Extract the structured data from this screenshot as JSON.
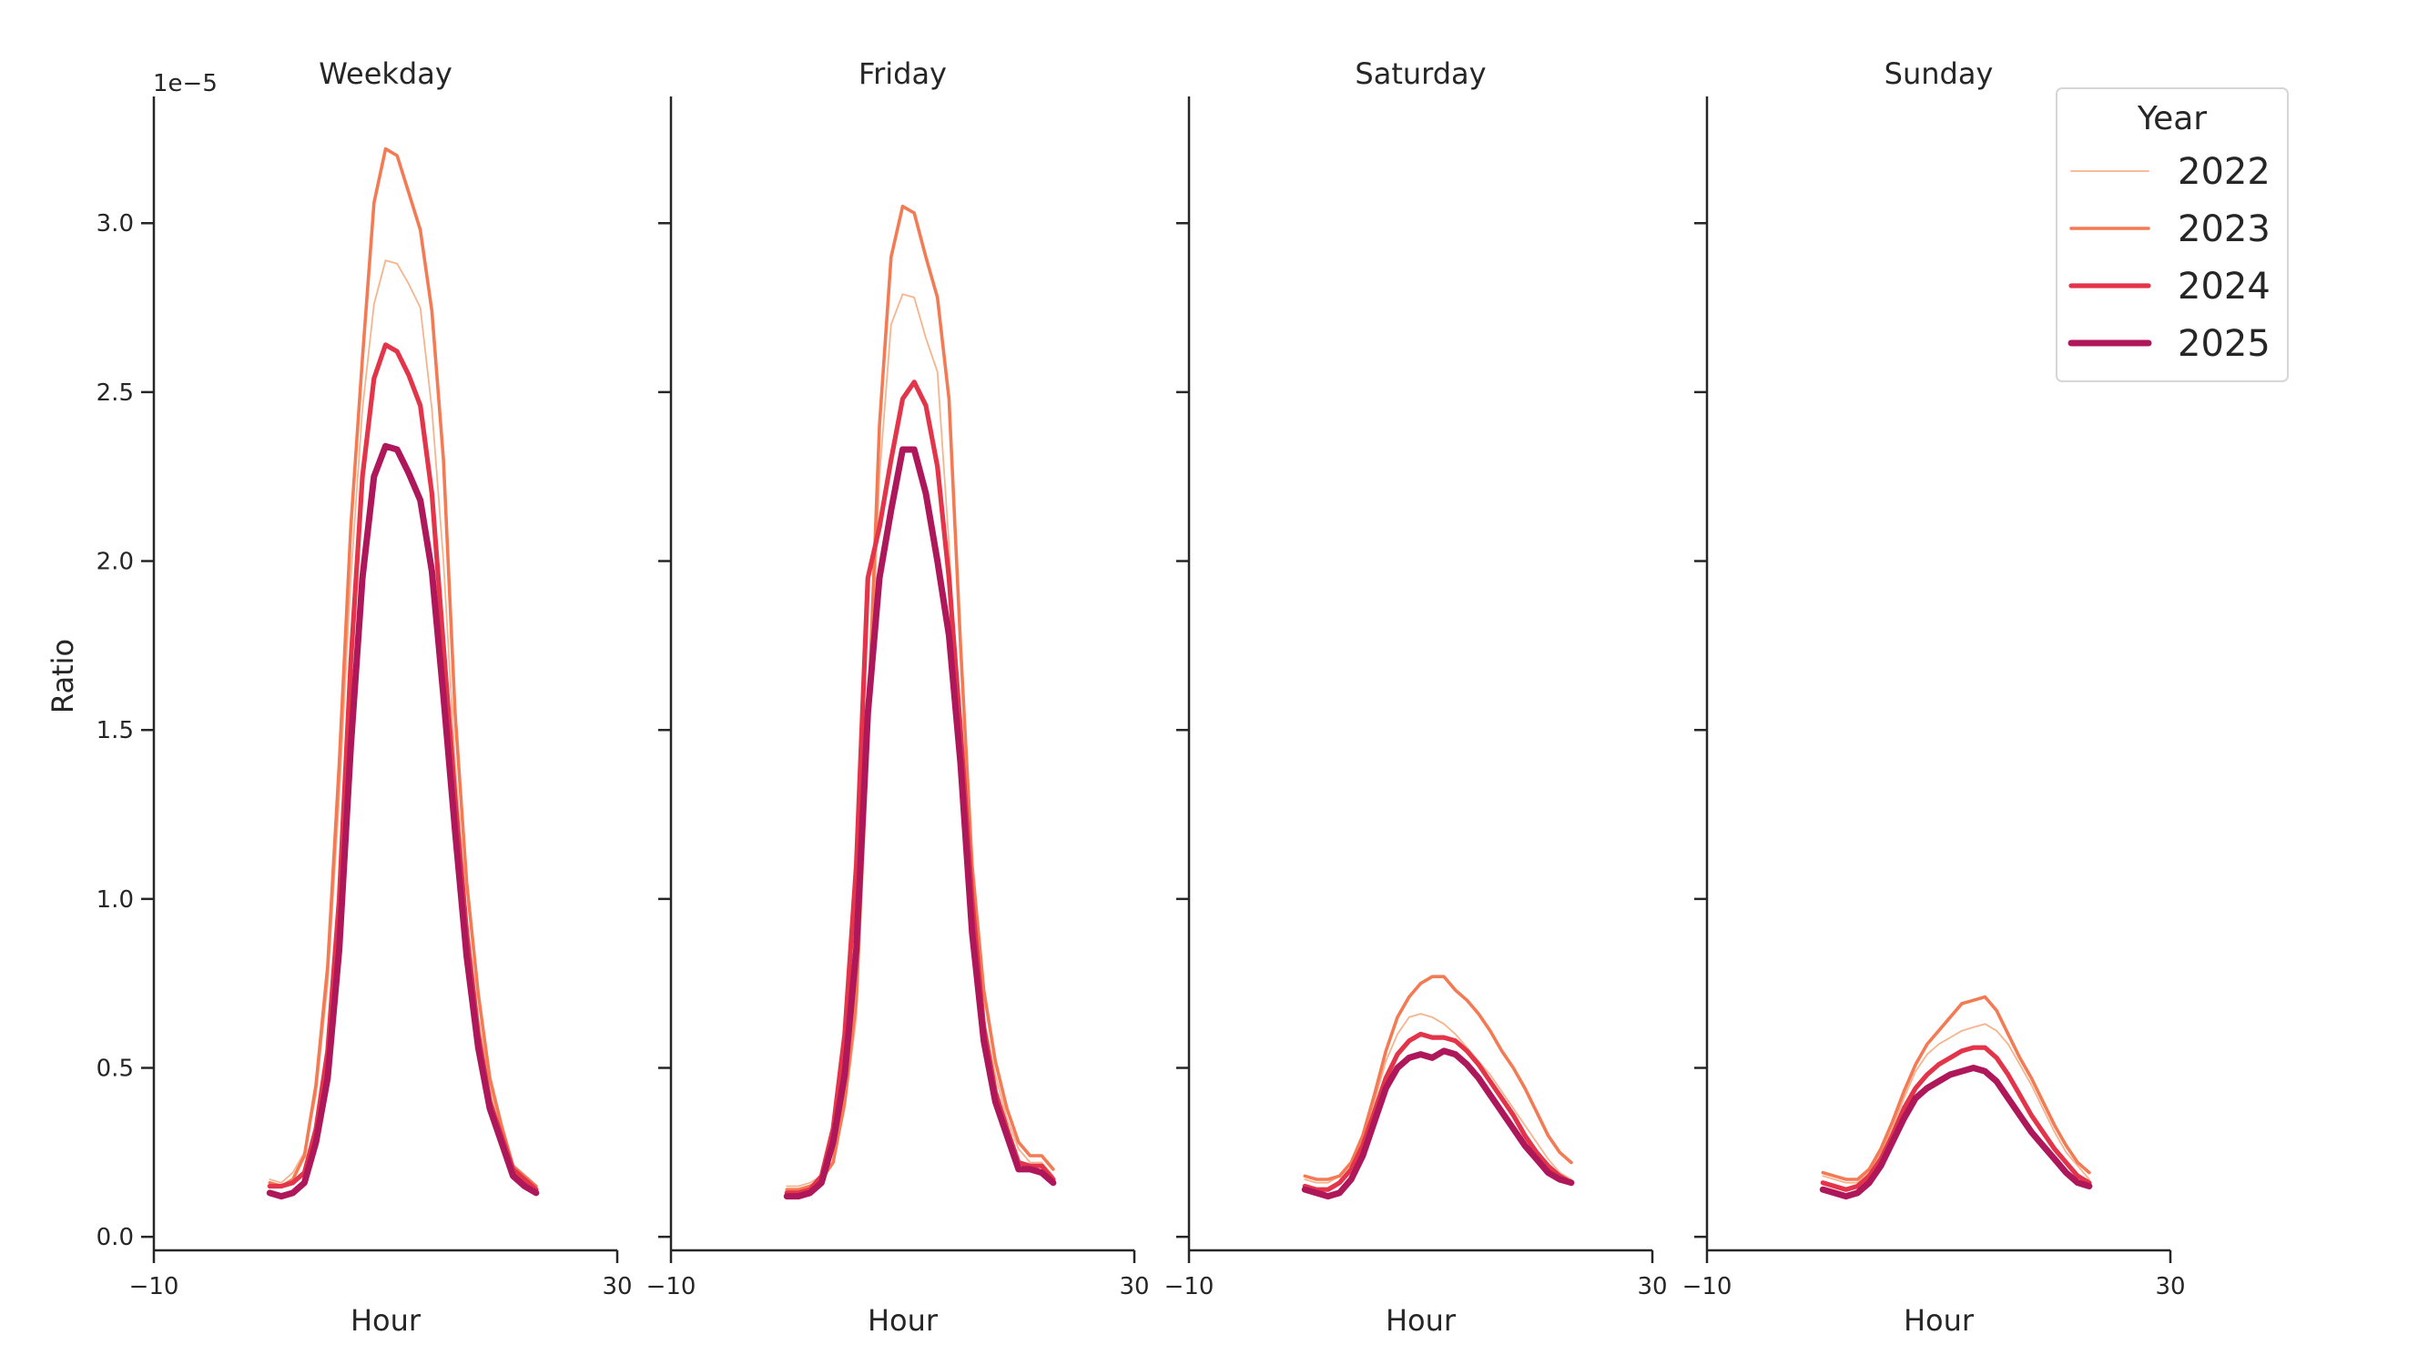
{
  "chart_data": {
    "type": "line",
    "ylabel": "Ratio",
    "y_offset_label": "1e−5",
    "ylim": [
      -0.04,
      3.375
    ],
    "yticks": [
      "0.0",
      "0.5",
      "1.0",
      "1.5",
      "2.0",
      "2.5",
      "3.0"
    ],
    "ytick_values": [
      0,
      0.5,
      1.0,
      1.5,
      2.0,
      2.5,
      3.0
    ],
    "xlim": [
      -10,
      30
    ],
    "xticks": [
      "−10",
      "30"
    ],
    "xtick_values": [
      -10,
      30
    ],
    "grid": false,
    "legend": {
      "title": "Year",
      "placement": "top-right",
      "entries": [
        "2022",
        "2023",
        "2024",
        "2025"
      ]
    },
    "colors": {
      "2022": "#f6b48e",
      "2023": "#f47a54",
      "2024": "#e3344a",
      "2025": "#ae1759"
    },
    "x": [
      0,
      1,
      2,
      3,
      4,
      5,
      6,
      7,
      8,
      9,
      10,
      11,
      12,
      13,
      14,
      15,
      16,
      17,
      18,
      19,
      20,
      21,
      22,
      23
    ],
    "panels": [
      {
        "title": "Weekday",
        "xlabel": "Hour",
        "series": [
          {
            "name": "2022",
            "values": [
              0.17,
              0.16,
              0.19,
              0.25,
              0.42,
              0.75,
              1.3,
              1.95,
              2.45,
              2.76,
              2.89,
              2.88,
              2.82,
              2.75,
              2.45,
              2.0,
              1.4,
              0.95,
              0.65,
              0.44,
              0.3,
              0.2,
              0.17,
              0.15
            ]
          },
          {
            "name": "2023",
            "values": [
              0.16,
              0.15,
              0.17,
              0.24,
              0.45,
              0.8,
              1.4,
              2.1,
              2.6,
              3.06,
              3.22,
              3.2,
              3.09,
              2.98,
              2.74,
              2.3,
              1.55,
              1.05,
              0.72,
              0.47,
              0.33,
              0.21,
              0.18,
              0.15
            ]
          },
          {
            "name": "2024",
            "values": [
              0.15,
              0.15,
              0.16,
              0.19,
              0.32,
              0.55,
              1.0,
              1.7,
              2.25,
              2.54,
              2.64,
              2.62,
              2.55,
              2.46,
              2.2,
              1.75,
              1.3,
              0.9,
              0.6,
              0.4,
              0.3,
              0.2,
              0.17,
              0.14
            ]
          },
          {
            "name": "2025",
            "values": [
              0.13,
              0.12,
              0.13,
              0.16,
              0.28,
              0.47,
              0.85,
              1.45,
              1.95,
              2.25,
              2.34,
              2.33,
              2.26,
              2.18,
              1.97,
              1.6,
              1.2,
              0.83,
              0.56,
              0.38,
              0.28,
              0.18,
              0.15,
              0.13
            ]
          }
        ]
      },
      {
        "title": "Friday",
        "xlabel": "Hour",
        "series": [
          {
            "name": "2022",
            "values": [
              0.15,
              0.15,
              0.16,
              0.18,
              0.22,
              0.38,
              0.65,
              1.4,
              2.25,
              2.7,
              2.79,
              2.78,
              2.66,
              2.56,
              2.05,
              1.45,
              0.95,
              0.65,
              0.48,
              0.35,
              0.26,
              0.22,
              0.22,
              0.18
            ]
          },
          {
            "name": "2023",
            "values": [
              0.14,
              0.14,
              0.15,
              0.17,
              0.22,
              0.4,
              0.7,
              1.5,
              2.4,
              2.9,
              3.05,
              3.03,
              2.9,
              2.78,
              2.48,
              1.75,
              1.1,
              0.73,
              0.52,
              0.38,
              0.28,
              0.24,
              0.24,
              0.2
            ]
          },
          {
            "name": "2024",
            "values": [
              0.13,
              0.13,
              0.14,
              0.18,
              0.32,
              0.6,
              1.1,
              1.95,
              2.1,
              2.3,
              2.48,
              2.53,
              2.46,
              2.28,
              1.95,
              1.5,
              1.0,
              0.62,
              0.43,
              0.32,
              0.22,
              0.21,
              0.21,
              0.17
            ]
          },
          {
            "name": "2025",
            "values": [
              0.12,
              0.12,
              0.13,
              0.16,
              0.28,
              0.48,
              0.85,
              1.55,
              1.95,
              2.15,
              2.33,
              2.33,
              2.2,
              2.0,
              1.78,
              1.4,
              0.9,
              0.58,
              0.4,
              0.3,
              0.2,
              0.2,
              0.19,
              0.16
            ]
          }
        ]
      },
      {
        "title": "Saturday",
        "xlabel": "Hour",
        "series": [
          {
            "name": "2022",
            "values": [
              0.17,
              0.16,
              0.16,
              0.18,
              0.22,
              0.3,
              0.4,
              0.52,
              0.6,
              0.65,
              0.66,
              0.65,
              0.63,
              0.6,
              0.56,
              0.52,
              0.48,
              0.43,
              0.38,
              0.33,
              0.28,
              0.23,
              0.19,
              0.17
            ]
          },
          {
            "name": "2023",
            "values": [
              0.18,
              0.17,
              0.17,
              0.18,
              0.22,
              0.3,
              0.42,
              0.55,
              0.65,
              0.71,
              0.75,
              0.77,
              0.77,
              0.73,
              0.7,
              0.66,
              0.61,
              0.55,
              0.5,
              0.44,
              0.37,
              0.3,
              0.25,
              0.22
            ]
          },
          {
            "name": "2024",
            "values": [
              0.15,
              0.14,
              0.14,
              0.16,
              0.2,
              0.27,
              0.37,
              0.47,
              0.54,
              0.58,
              0.6,
              0.59,
              0.59,
              0.58,
              0.55,
              0.51,
              0.46,
              0.41,
              0.36,
              0.3,
              0.25,
              0.21,
              0.18,
              0.16
            ]
          },
          {
            "name": "2025",
            "values": [
              0.14,
              0.13,
              0.12,
              0.13,
              0.17,
              0.24,
              0.34,
              0.44,
              0.5,
              0.53,
              0.54,
              0.53,
              0.55,
              0.54,
              0.51,
              0.47,
              0.42,
              0.37,
              0.32,
              0.27,
              0.23,
              0.19,
              0.17,
              0.16
            ]
          }
        ]
      },
      {
        "title": "Sunday",
        "xlabel": "Hour",
        "series": [
          {
            "name": "2022",
            "values": [
              0.18,
              0.17,
              0.16,
              0.16,
              0.19,
              0.25,
              0.32,
              0.41,
              0.49,
              0.54,
              0.57,
              0.59,
              0.61,
              0.62,
              0.63,
              0.61,
              0.57,
              0.51,
              0.45,
              0.38,
              0.31,
              0.25,
              0.21,
              0.17
            ]
          },
          {
            "name": "2023",
            "values": [
              0.19,
              0.18,
              0.17,
              0.17,
              0.2,
              0.26,
              0.34,
              0.43,
              0.51,
              0.57,
              0.61,
              0.65,
              0.69,
              0.7,
              0.71,
              0.67,
              0.6,
              0.53,
              0.47,
              0.4,
              0.33,
              0.27,
              0.22,
              0.19
            ]
          },
          {
            "name": "2024",
            "values": [
              0.16,
              0.15,
              0.14,
              0.15,
              0.18,
              0.23,
              0.3,
              0.38,
              0.44,
              0.48,
              0.51,
              0.53,
              0.55,
              0.56,
              0.56,
              0.53,
              0.48,
              0.42,
              0.36,
              0.31,
              0.26,
              0.22,
              0.18,
              0.16
            ]
          },
          {
            "name": "2025",
            "values": [
              0.14,
              0.13,
              0.12,
              0.13,
              0.16,
              0.21,
              0.28,
              0.35,
              0.41,
              0.44,
              0.46,
              0.48,
              0.49,
              0.5,
              0.49,
              0.46,
              0.41,
              0.36,
              0.31,
              0.27,
              0.23,
              0.19,
              0.16,
              0.15
            ]
          }
        ]
      }
    ]
  }
}
